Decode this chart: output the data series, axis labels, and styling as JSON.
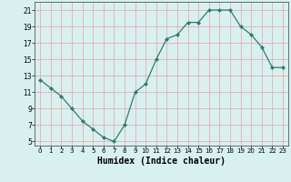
{
  "x": [
    0,
    1,
    2,
    3,
    4,
    5,
    6,
    7,
    8,
    9,
    10,
    11,
    12,
    13,
    14,
    15,
    16,
    17,
    18,
    19,
    20,
    21,
    22,
    23
  ],
  "y": [
    12.5,
    11.5,
    10.5,
    9.0,
    7.5,
    6.5,
    5.5,
    5.0,
    7.0,
    11.0,
    12.0,
    15.0,
    17.5,
    18.0,
    19.5,
    19.5,
    21.0,
    21.0,
    21.0,
    19.0,
    18.0,
    16.5,
    14.0,
    14.0
  ],
  "xlabel": "Humidex (Indice chaleur)",
  "xlim": [
    -0.5,
    23.5
  ],
  "ylim": [
    4.5,
    22
  ],
  "yticks": [
    5,
    7,
    9,
    11,
    13,
    15,
    17,
    19,
    21
  ],
  "xticks": [
    0,
    1,
    2,
    3,
    4,
    5,
    6,
    7,
    8,
    9,
    10,
    11,
    12,
    13,
    14,
    15,
    16,
    17,
    18,
    19,
    20,
    21,
    22,
    23
  ],
  "line_color": "#2e7d6e",
  "marker": "D",
  "marker_size": 2.0,
  "bg_color": "#d8f0f0",
  "grid_color": "#e8a0a0",
  "xlabel_fontsize": 7,
  "tick_fontsize_x": 5,
  "tick_fontsize_y": 5.5
}
